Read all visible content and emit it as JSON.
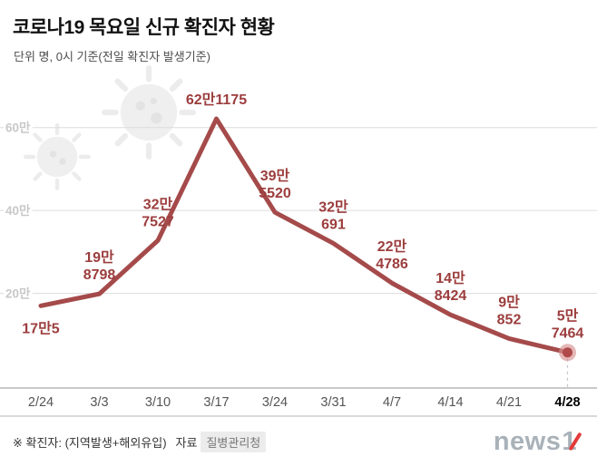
{
  "header": {
    "title": "코로나19 목요일 신규 확진자 현황",
    "subtitle": "단위 명, 0시 기준(전일 확진자 발생기준)"
  },
  "chart_data": {
    "type": "line",
    "title": "코로나19 목요일 신규 확진자 현황",
    "x": [
      "2/24",
      "3/3",
      "3/10",
      "3/17",
      "3/24",
      "3/31",
      "4/7",
      "4/14",
      "4/21",
      "4/28"
    ],
    "values": [
      170005,
      198798,
      327527,
      621175,
      395520,
      320691,
      224786,
      148424,
      90852,
      57464
    ],
    "point_labels": [
      [
        "17만5"
      ],
      [
        "19만",
        "8798"
      ],
      [
        "32만",
        "7527"
      ],
      [
        "62만1175"
      ],
      [
        "39만",
        "5520"
      ],
      [
        "32만",
        "691"
      ],
      [
        "22만",
        "4786"
      ],
      [
        "14만",
        "8424"
      ],
      [
        "9만",
        "852"
      ],
      [
        "5만",
        "7464"
      ]
    ],
    "ylim": [
      0,
      700000
    ],
    "yticks": [
      {
        "label": "20만",
        "value": 200000
      },
      {
        "label": "40만",
        "value": 400000
      },
      {
        "label": "60만",
        "value": 600000
      }
    ],
    "grid": true,
    "legend": "none",
    "line_color": "#a54a4a",
    "label_color": "#9c3d3d",
    "grid_color": "#dcdcdc",
    "ytick_color": "#c8c8c8",
    "marker_fill": "#b04a4a",
    "marker_halo": "#d79090"
  },
  "footer": {
    "note_prefix": "※ 확진자: (지역발생+해외유입)",
    "source_label": "자료",
    "source_value": "질병관리청",
    "logo_news": "news",
    "logo_one": "1"
  }
}
